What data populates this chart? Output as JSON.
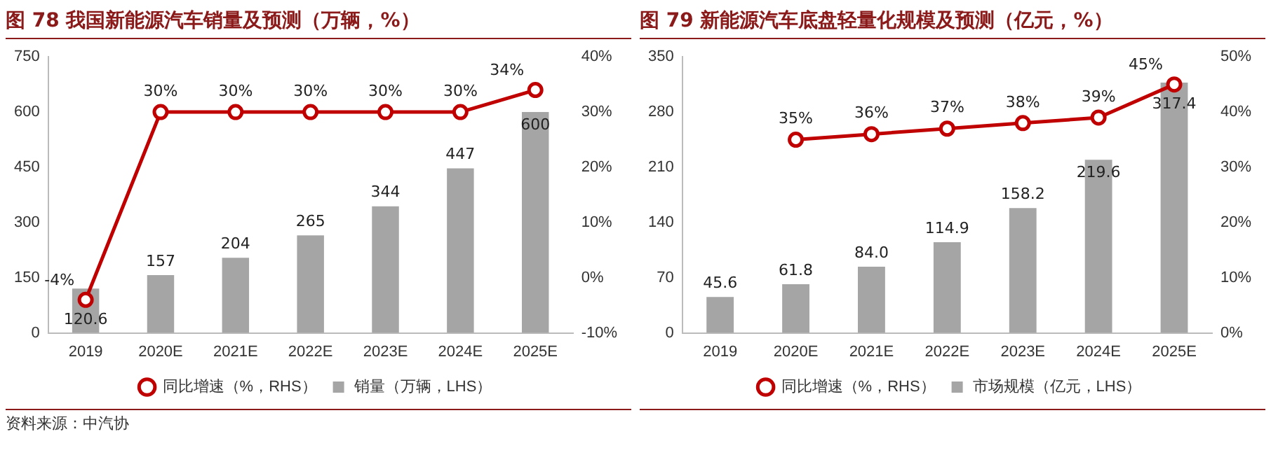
{
  "chart_data": [
    {
      "type": "bar",
      "title": "图 78 我国新能源汽车销量及预测（万辆，%）",
      "categories": [
        "2019",
        "2020E",
        "2021E",
        "2022E",
        "2023E",
        "2024E",
        "2025E"
      ],
      "series": [
        {
          "name": "销量（万辆，LHS）",
          "color": "#a5a5a5",
          "values": [
            120.6,
            157,
            204,
            265,
            344,
            447,
            600
          ],
          "value_labels": [
            "120.6",
            "157",
            "204",
            "265",
            "344",
            "447",
            "600"
          ]
        },
        {
          "name": "同比增速（%，RHS）",
          "type": "line",
          "axis": "y2",
          "color": "#c00000",
          "values": [
            -4,
            30,
            30,
            30,
            30,
            30,
            34
          ],
          "value_labels": [
            "-4%",
            "30%",
            "30%",
            "30%",
            "30%",
            "30%",
            "34%"
          ]
        }
      ],
      "ylim": [
        0,
        750
      ],
      "yticks": [
        0,
        150,
        300,
        450,
        600,
        750
      ],
      "y2lim": [
        -10,
        40
      ],
      "y2ticks": [
        {
          "value": -10,
          "label": "-10%"
        },
        {
          "value": 0,
          "label": "0%"
        },
        {
          "value": 10,
          "label": "10%"
        },
        {
          "value": 20,
          "label": "20%"
        },
        {
          "value": 30,
          "label": "30%"
        },
        {
          "value": 40,
          "label": "40%"
        }
      ],
      "legend": "bottom",
      "marker": "circle",
      "line_style": "solid",
      "annotations": [
        "资料来源：中汽协"
      ]
    },
    {
      "type": "bar",
      "title": "图 79 新能源汽车底盘轻量化规模及预测（亿元，%）",
      "categories": [
        "2019",
        "2020E",
        "2021E",
        "2022E",
        "2023E",
        "2024E",
        "2025E"
      ],
      "series": [
        {
          "name": "市场规模（亿元，LHS）",
          "color": "#a5a5a5",
          "values": [
            45.6,
            61.8,
            84.0,
            114.9,
            158.2,
            219.6,
            317.4
          ],
          "value_labels": [
            "45.6",
            "61.8",
            "84.0",
            "114.9",
            "158.2",
            "219.6",
            "317.4"
          ]
        },
        {
          "name": "同比增速（%，RHS）",
          "type": "line",
          "axis": "y2",
          "color": "#c00000",
          "values": [
            null,
            35,
            36,
            37,
            38,
            39,
            45
          ],
          "value_labels": [
            null,
            "35%",
            "36%",
            "37%",
            "38%",
            "39%",
            "45%"
          ]
        }
      ],
      "ylim": [
        0,
        350
      ],
      "yticks": [
        0,
        70,
        140,
        210,
        280,
        350
      ],
      "y2lim": [
        0,
        50
      ],
      "y2ticks": [
        {
          "value": 0,
          "label": "0%"
        },
        {
          "value": 10,
          "label": "10%"
        },
        {
          "value": 20,
          "label": "20%"
        },
        {
          "value": 30,
          "label": "30%"
        },
        {
          "value": 40,
          "label": "40%"
        },
        {
          "value": 50,
          "label": "50%"
        }
      ],
      "legend": "bottom",
      "marker": "circle",
      "line_style": "solid"
    }
  ]
}
